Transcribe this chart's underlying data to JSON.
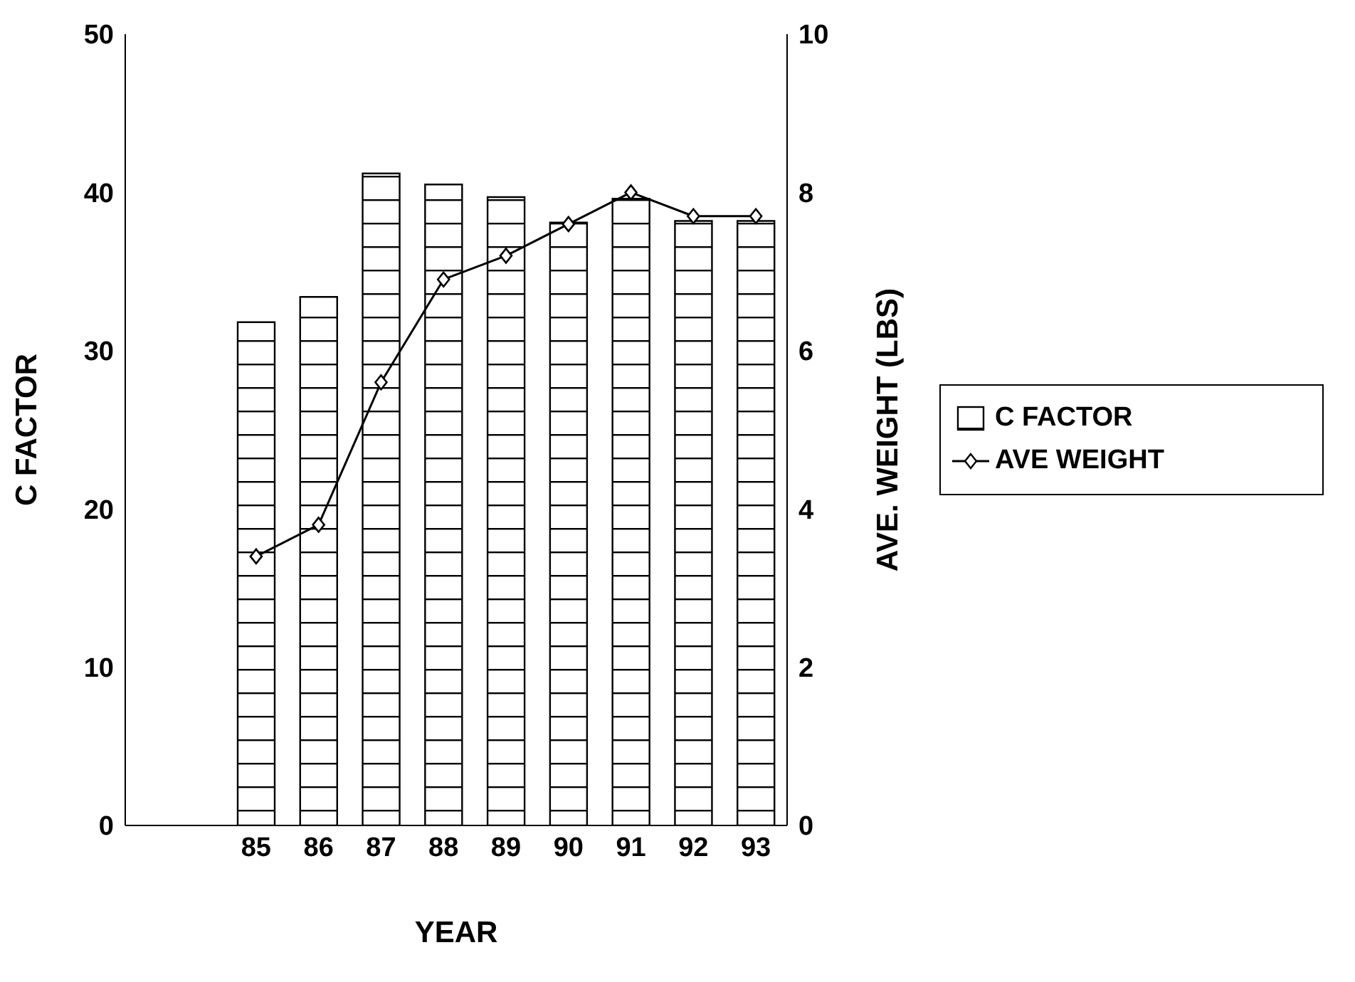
{
  "chart_data": {
    "type": "bar",
    "xlabel": "YEAR",
    "ylabel": "C FACTOR",
    "y2label": "AVE. WEIGHT (LBS)",
    "categories": [
      "85",
      "86",
      "87",
      "88",
      "89",
      "90",
      "91",
      "92",
      "93"
    ],
    "series": [
      {
        "name": "C FACTOR",
        "color": "#000000",
        "values": [
          31.8,
          33.4,
          41.2,
          40.5,
          39.7,
          38.1,
          39.6,
          38.2,
          38.2
        ]
      },
      {
        "name": "AVE WEIGHT",
        "type": "line",
        "axis": "y2",
        "color": "#000000",
        "marker": "diamond",
        "line_style": "solid",
        "values": [
          3.4,
          3.8,
          5.6,
          6.9,
          7.2,
          7.6,
          8.0,
          7.7,
          7.7
        ]
      }
    ],
    "ylim": [
      0,
      50
    ],
    "yticks": [
      0,
      10,
      20,
      30,
      40,
      50
    ],
    "y2lim": [
      0,
      10
    ],
    "y2ticks": [
      0,
      2,
      4,
      6,
      8,
      10
    ],
    "grid": false,
    "legend": "right"
  }
}
